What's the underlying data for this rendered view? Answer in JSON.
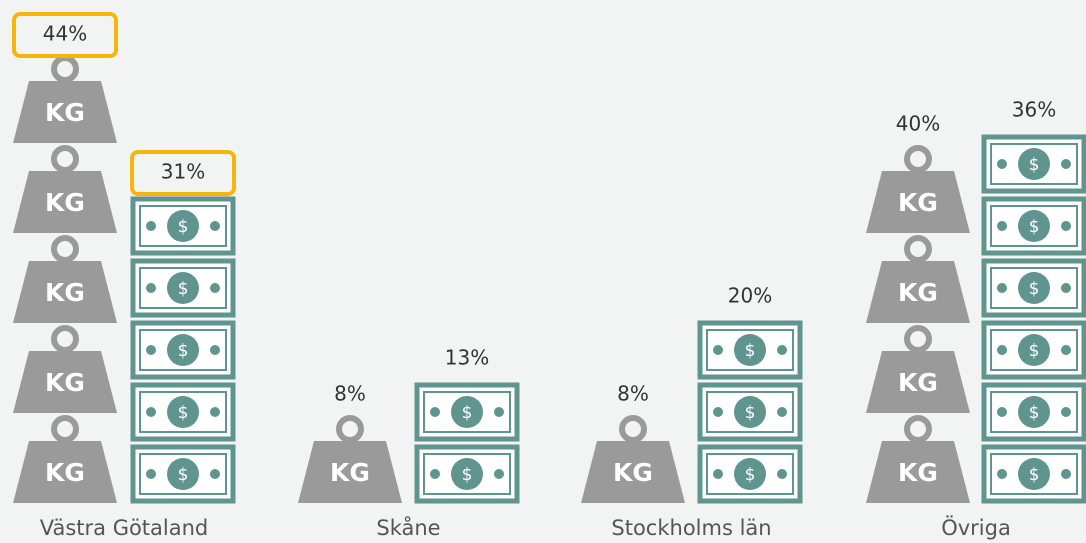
{
  "chart_data": {
    "type": "pictograph",
    "categories": [
      "Västra Götaland",
      "Skåne",
      "Stockholms län",
      "Övriga"
    ],
    "series": [
      {
        "color": "#9a9a9a",
        "icon_text": "KG",
        "values": [
          44,
          8,
          8,
          40
        ],
        "value_labels": [
          "44%",
          "8%",
          "8%",
          "40%"
        ]
      },
      {
        "color": "#5f948f",
        "icon_text": "$",
        "values": [
          31,
          13,
          20,
          36
        ],
        "value_labels": [
          "31%",
          "13%",
          "20%",
          "36%"
        ]
      }
    ]
  }
}
